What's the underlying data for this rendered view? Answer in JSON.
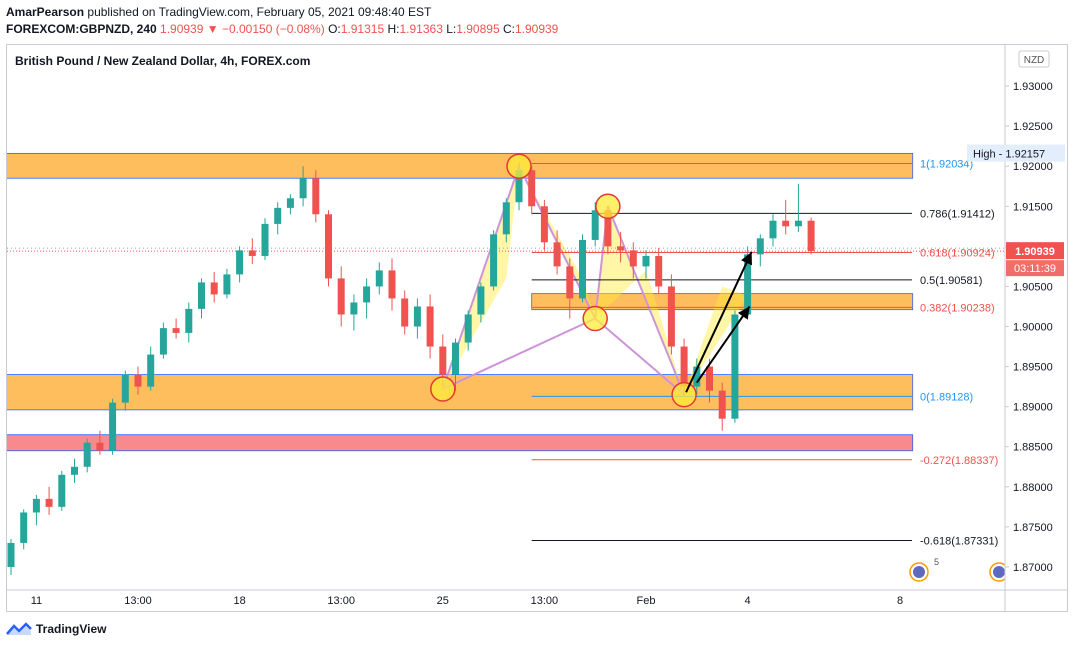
{
  "header": {
    "author": "AmarPearson",
    "published": "published on TradingView.com, February 05, 2021 09:48:40 EST",
    "symbol": "FOREXCOM:GBPNZD, 240",
    "last": "1.90939",
    "change": "▼ −0.00150 (−0.08%)",
    "o_label": "O:",
    "o_value": "1.91315",
    "h_label": "H:",
    "h_value": "1.91363",
    "l_label": "L:",
    "l_value": "1.90895",
    "c_label": "C:",
    "c_value": "1.90939"
  },
  "footer": {
    "brand": "TradingView"
  },
  "chart_data": {
    "type": "candlestick",
    "title": "British Pound / New Zealand Dollar, 4h, FOREX.com",
    "currency": "NZD",
    "ylim": [
      1.869,
      1.932
    ],
    "y_ticks": [
      "1.87000",
      "1.87500",
      "1.88000",
      "1.88500",
      "1.89000",
      "1.89500",
      "1.90000",
      "1.90500",
      "1.91000",
      "1.91500",
      "1.92000",
      "1.92500",
      "1.93000"
    ],
    "x_ticks": [
      {
        "label": "11",
        "i": 2
      },
      {
        "label": "13:00",
        "i": 10
      },
      {
        "label": "18",
        "i": 18
      },
      {
        "label": "13:00",
        "i": 26
      },
      {
        "label": "25",
        "i": 34
      },
      {
        "label": "13:00",
        "i": 42
      },
      {
        "label": "Feb",
        "i": 50
      },
      {
        "label": "4",
        "i": 58
      },
      {
        "label": "8",
        "i": 70
      }
    ],
    "colors": {
      "up": "#26a69a",
      "down": "#ef5350",
      "zone": "#ffb74d",
      "zone_border": "#2962ff",
      "red_zone": "#f77c80",
      "fib_blue": "#2196f3",
      "pattern": "#ce93d8",
      "highlight": "#ffeb3b",
      "circle": "#e53935"
    },
    "candles": [
      [
        1.87,
        1.8735,
        1.869,
        1.873
      ],
      [
        1.873,
        1.8772,
        1.8722,
        1.8768
      ],
      [
        1.8768,
        1.879,
        1.8752,
        1.8785
      ],
      [
        1.8785,
        1.88,
        1.8765,
        1.8775
      ],
      [
        1.8775,
        1.882,
        1.877,
        1.8815
      ],
      [
        1.8815,
        1.8835,
        1.8805,
        1.8825
      ],
      [
        1.8825,
        1.886,
        1.8818,
        1.8855
      ],
      [
        1.8855,
        1.887,
        1.884,
        1.8845
      ],
      [
        1.8845,
        1.891,
        1.884,
        1.8905
      ],
      [
        1.8905,
        1.8945,
        1.8895,
        1.894
      ],
      [
        1.894,
        1.895,
        1.8915,
        1.8925
      ],
      [
        1.8925,
        1.8975,
        1.892,
        1.8965
      ],
      [
        1.8965,
        1.9005,
        1.896,
        1.8998
      ],
      [
        1.8998,
        1.901,
        1.8985,
        1.8992
      ],
      [
        1.8992,
        1.903,
        1.898,
        1.9022
      ],
      [
        1.9022,
        1.906,
        1.901,
        1.9055
      ],
      [
        1.9055,
        1.9068,
        1.903,
        1.904
      ],
      [
        1.904,
        1.9072,
        1.9035,
        1.9065
      ],
      [
        1.9065,
        1.91,
        1.9055,
        1.9095
      ],
      [
        1.9095,
        1.911,
        1.9078,
        1.9088
      ],
      [
        1.9088,
        1.9135,
        1.9083,
        1.9128
      ],
      [
        1.9128,
        1.9155,
        1.9115,
        1.9148
      ],
      [
        1.9148,
        1.9165,
        1.914,
        1.916
      ],
      [
        1.916,
        1.92,
        1.915,
        1.9185
      ],
      [
        1.9185,
        1.9195,
        1.913,
        1.914
      ],
      [
        1.914,
        1.9145,
        1.905,
        1.906
      ],
      [
        1.906,
        1.9075,
        1.9,
        1.9015
      ],
      [
        1.9015,
        1.904,
        1.8995,
        1.903
      ],
      [
        1.903,
        1.906,
        1.901,
        1.905
      ],
      [
        1.905,
        1.908,
        1.904,
        1.907
      ],
      [
        1.907,
        1.9085,
        1.902,
        1.9035
      ],
      [
        1.9035,
        1.9045,
        1.899,
        1.9
      ],
      [
        1.9,
        1.9035,
        1.8985,
        1.9025
      ],
      [
        1.9025,
        1.904,
        1.896,
        1.8975
      ],
      [
        1.8975,
        1.899,
        1.8925,
        1.894
      ],
      [
        1.894,
        1.8985,
        1.892,
        1.898
      ],
      [
        1.898,
        1.902,
        1.897,
        1.9015
      ],
      [
        1.9015,
        1.9055,
        1.9005,
        1.905
      ],
      [
        1.905,
        1.912,
        1.9045,
        1.9115
      ],
      [
        1.9115,
        1.916,
        1.9105,
        1.9155
      ],
      [
        1.9155,
        1.9205,
        1.9145,
        1.9195
      ],
      [
        1.9195,
        1.92,
        1.914,
        1.915
      ],
      [
        1.915,
        1.9158,
        1.9095,
        1.9105
      ],
      [
        1.9105,
        1.912,
        1.9065,
        1.9075
      ],
      [
        1.9075,
        1.9085,
        1.901,
        1.9035
      ],
      [
        1.9035,
        1.9115,
        1.903,
        1.9108
      ],
      [
        1.9108,
        1.9155,
        1.91,
        1.9145
      ],
      [
        1.9145,
        1.915,
        1.909,
        1.91
      ],
      [
        1.91,
        1.9118,
        1.908,
        1.9095
      ],
      [
        1.9095,
        1.9105,
        1.906,
        1.9075
      ],
      [
        1.9075,
        1.9095,
        1.906,
        1.9088
      ],
      [
        1.9088,
        1.9098,
        1.904,
        1.905
      ],
      [
        1.905,
        1.9065,
        1.8965,
        1.8975
      ],
      [
        1.8975,
        1.8985,
        1.8912,
        1.8925
      ],
      [
        1.8925,
        1.896,
        1.8915,
        1.895
      ],
      [
        1.895,
        1.896,
        1.8905,
        1.892
      ],
      [
        1.892,
        1.893,
        1.887,
        1.8885
      ],
      [
        1.8885,
        1.902,
        1.888,
        1.9015
      ],
      [
        1.9015,
        1.91,
        1.901,
        1.909
      ],
      [
        1.909,
        1.9115,
        1.9075,
        1.911
      ],
      [
        1.911,
        1.914,
        1.91,
        1.9132
      ],
      [
        1.9132,
        1.9158,
        1.9115,
        1.9125
      ],
      [
        1.9125,
        1.9178,
        1.9118,
        1.9132
      ],
      [
        1.9132,
        1.9136,
        1.909,
        1.9094
      ]
    ],
    "zones": [
      {
        "i0": -8,
        "i1": 71,
        "top": 1.9216,
        "bottom": 1.9185,
        "fill": "#ffb74d"
      },
      {
        "i0": 41,
        "i1": 71,
        "top": 1.9041,
        "bottom": 1.9021,
        "fill": "#ffb74d"
      },
      {
        "i0": -24,
        "i1": 71,
        "top": 1.894,
        "bottom": 1.8896,
        "fill": "#ffb74d"
      },
      {
        "i0": -26,
        "i1": 71,
        "top": 1.8865,
        "bottom": 1.8845,
        "fill": "#f77c80"
      }
    ],
    "fib": [
      {
        "y": 1.92034,
        "label": "1(1.92034)",
        "color": "#2196f3"
      },
      {
        "y": 1.91412,
        "label": "0.786(1.91412)",
        "color": "#131722"
      },
      {
        "y": 1.90924,
        "label": "0.618(1.90924)",
        "color": "#ef5350"
      },
      {
        "y": 1.90581,
        "label": "0.5(1.90581)",
        "color": "#131722"
      },
      {
        "y": 1.90238,
        "label": "0.382(1.90238)",
        "color": "#ef5350"
      },
      {
        "y": 1.89128,
        "label": "0(1.89128)",
        "color": "#2196f3"
      },
      {
        "y": 1.88337,
        "label": "-0.272(1.88337)",
        "color": "#ef5350"
      },
      {
        "y": 1.87331,
        "label": "-0.618(1.87331)",
        "color": "#131722"
      }
    ],
    "pattern_points": [
      {
        "i": 34,
        "y": 1.8922
      },
      {
        "i": 40,
        "y": 1.92
      },
      {
        "i": 46,
        "y": 1.901
      },
      {
        "i": 47,
        "y": 1.915
      },
      {
        "i": 53,
        "y": 1.8915
      }
    ],
    "high_label": "High ‑ 1.92157",
    "price_label": "1.90939",
    "countdown": "03:11:39",
    "event_count": "5"
  }
}
